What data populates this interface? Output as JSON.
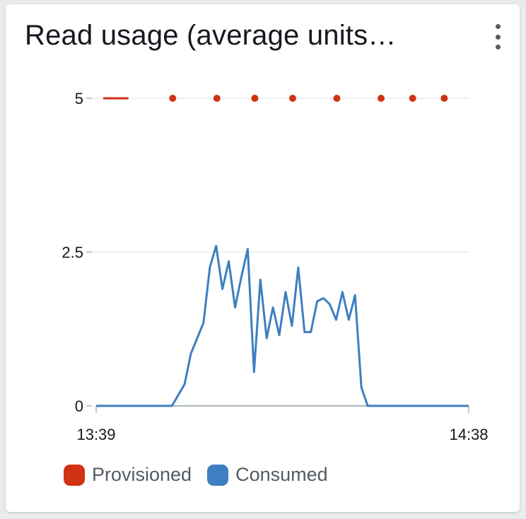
{
  "widget": {
    "title": "Read usage (average units…",
    "menu_icon": "vertical-ellipsis-icon"
  },
  "chart_data": {
    "type": "line",
    "title": "Read usage (average units…",
    "xlabel": "",
    "ylabel": "",
    "ylim": [
      0,
      5
    ],
    "y_ticks": [
      "0",
      "2.5",
      "5"
    ],
    "y_tick_values": [
      0,
      2.5,
      5
    ],
    "x_tick_labels": [
      "13:39",
      "14:38"
    ],
    "x_range_minutes": [
      0,
      59
    ],
    "grid": true,
    "legend": "bottom-left",
    "series": [
      {
        "name": "Provisioned",
        "color": "#d13212",
        "style": "dotted",
        "x": [
          0,
          2,
          4,
          11,
          18,
          24,
          30,
          37,
          44,
          49,
          54
        ],
        "values": [
          5,
          5,
          5,
          5,
          5,
          5,
          5,
          5,
          5,
          5,
          5
        ]
      },
      {
        "name": "Consumed",
        "color": "#3f7ec0",
        "style": "solid",
        "x": [
          0,
          12,
          14,
          15,
          17,
          18,
          19,
          20,
          21,
          22,
          23,
          24,
          25,
          25.5,
          26,
          27,
          28,
          29,
          30,
          31,
          32,
          33,
          34,
          35,
          36,
          36.5,
          37,
          38,
          39,
          40,
          41,
          42,
          43,
          44,
          45,
          46,
          47,
          48,
          49,
          50,
          51,
          52,
          53,
          59
        ],
        "values": [
          0,
          0,
          0.35,
          0.85,
          1.35,
          2.25,
          2.6,
          1.9,
          2.35,
          1.6,
          2.1,
          2.55,
          0.55,
          1.3,
          2.05,
          1.1,
          1.6,
          1.15,
          1.85,
          1.3,
          2.25,
          1.2,
          1.2,
          1.7,
          1.75,
          1.7,
          1.65,
          1.4,
          1.85,
          1.4,
          1.8,
          0.3,
          0,
          0,
          0,
          0,
          0,
          0,
          0,
          0,
          0,
          0,
          0,
          0
        ]
      }
    ]
  },
  "legend": {
    "items": [
      {
        "label": "Provisioned",
        "color": "#d13212"
      },
      {
        "label": "Consumed",
        "color": "#3f7ec0"
      }
    ]
  }
}
